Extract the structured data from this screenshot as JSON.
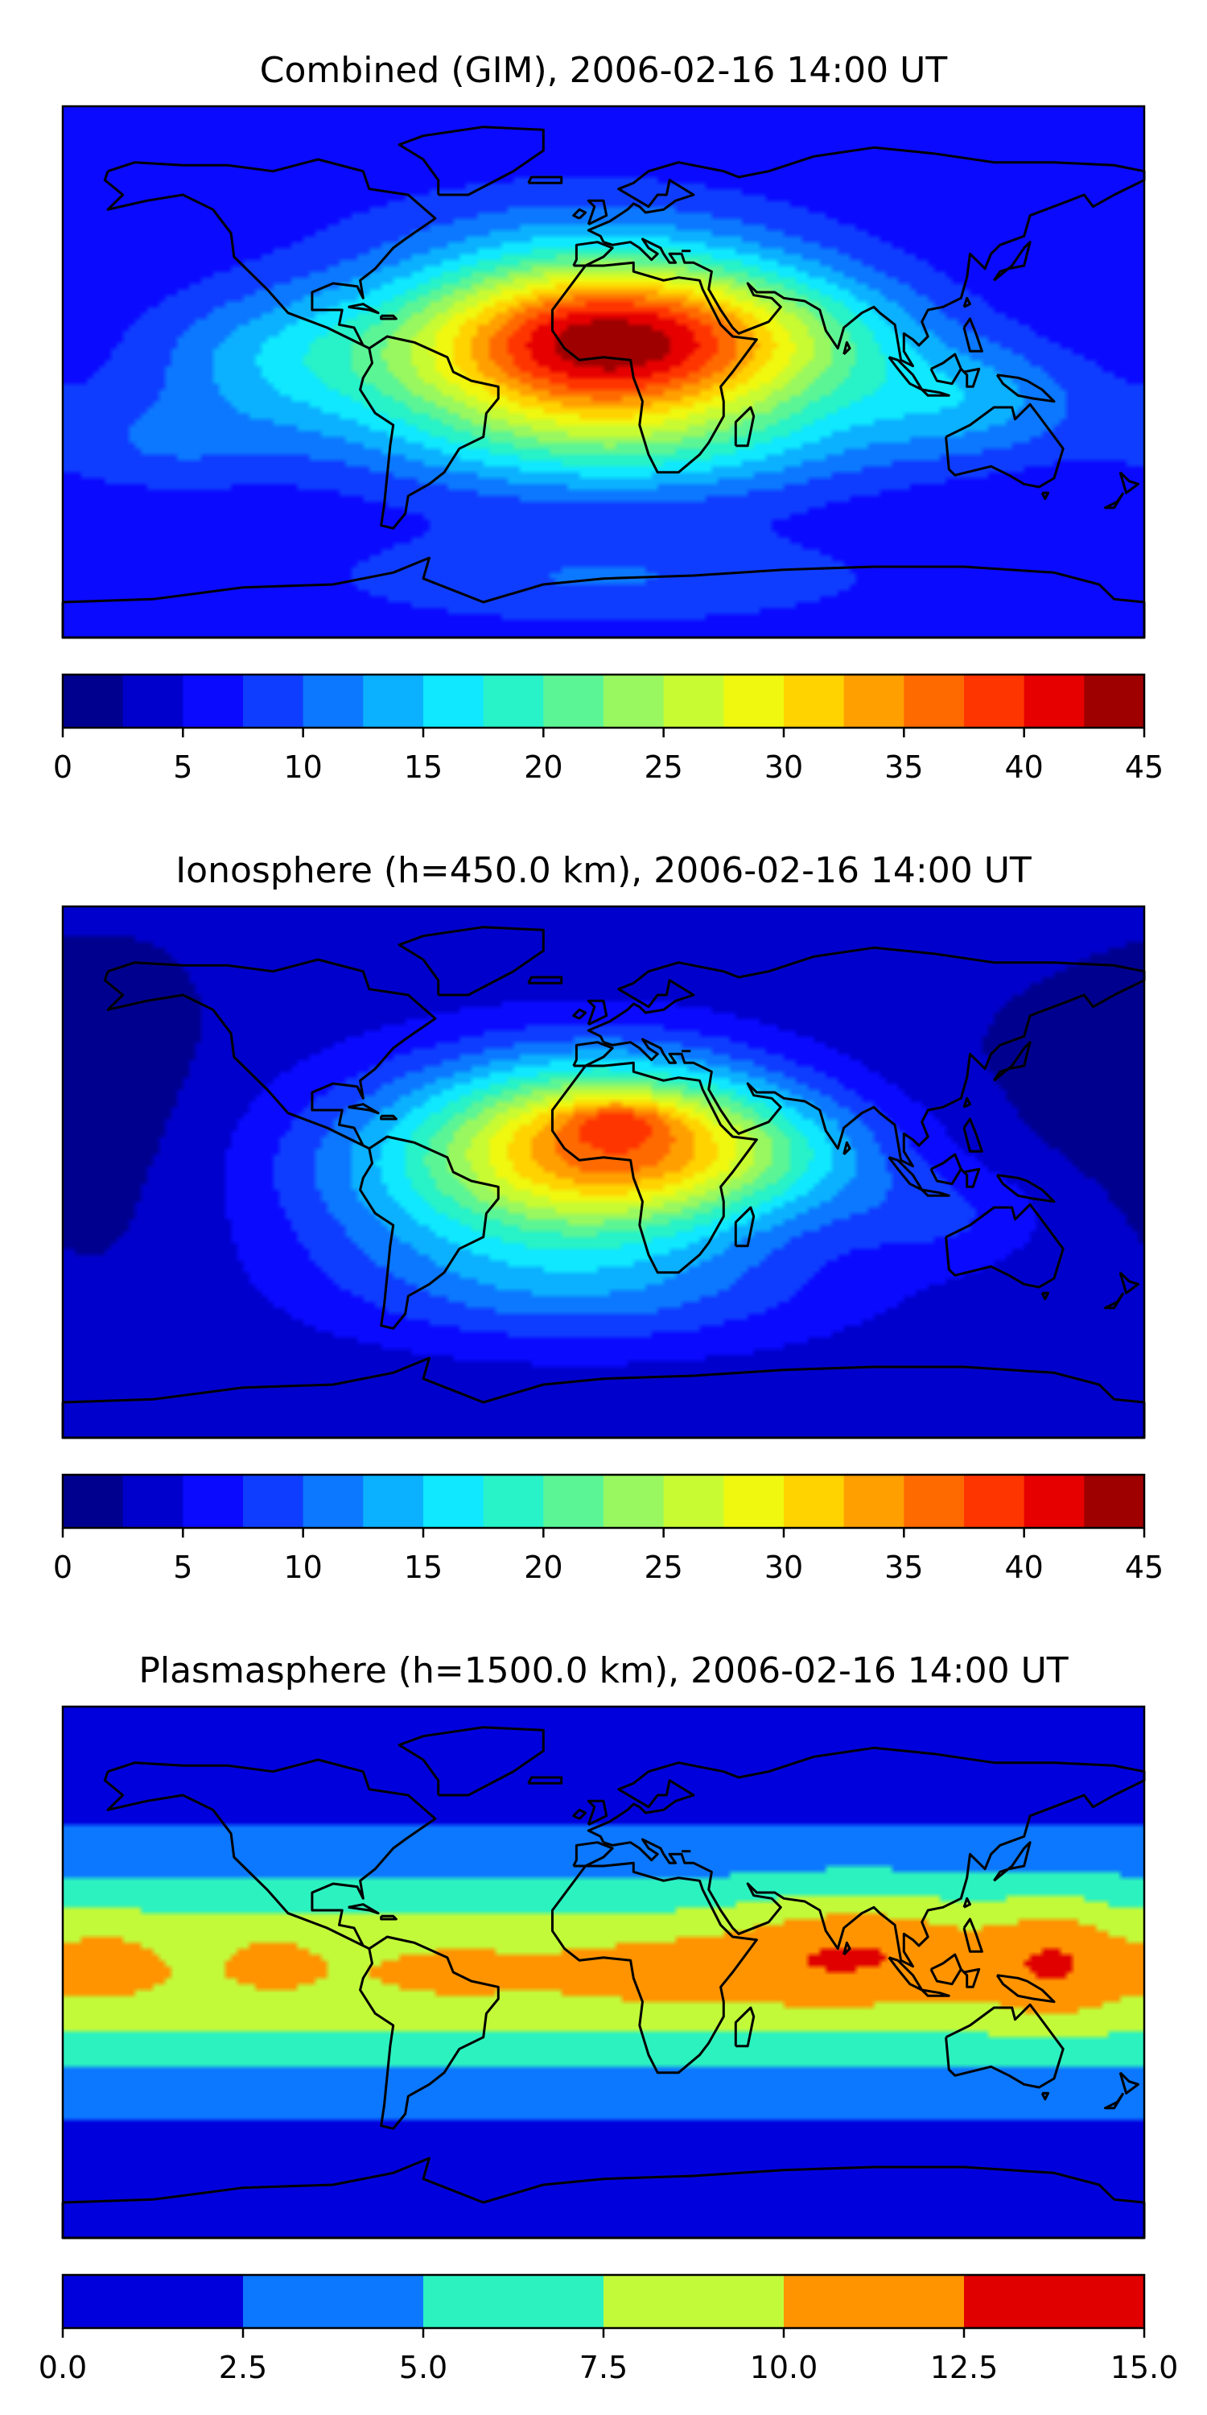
{
  "chart_data": [
    {
      "type": "heatmap",
      "title": "Combined (GIM), 2006-02-16 14:00 UT",
      "colorbar": {
        "ticks": [
          "0",
          "5",
          "10",
          "15",
          "20",
          "25",
          "30",
          "35",
          "40",
          "45"
        ],
        "levels": [
          0,
          2.5,
          5,
          7.5,
          10,
          12.5,
          15,
          17.5,
          20,
          22.5,
          25,
          27.5,
          30,
          32.5,
          35,
          37.5,
          40,
          42.5,
          45
        ],
        "colors": [
          "#00008f",
          "#0000cc",
          "#0a0aff",
          "#0f3dff",
          "#0c78ff",
          "#0bb1ff",
          "#0fe8ff",
          "#27f2c8",
          "#5cf596",
          "#99f85f",
          "#c9fb32",
          "#f0f810",
          "#ffd300",
          "#ff9f00",
          "#ff6a00",
          "#ff3500",
          "#e60000",
          "#9e0000"
        ]
      },
      "field": {
        "base": 5,
        "blobs": [
          {
            "lon": 0,
            "lat": 12,
            "slon": 42,
            "slat": 20,
            "amp": 27
          },
          {
            "lon": -30,
            "lat": 2,
            "slon": 60,
            "slat": 24,
            "amp": 12
          },
          {
            "lon": 60,
            "lat": 10,
            "slon": 38,
            "slat": 18,
            "amp": 10
          },
          {
            "lon": 125,
            "lat": -10,
            "slon": 28,
            "slat": 14,
            "amp": 7
          },
          {
            "lon": -110,
            "lat": 5,
            "slon": 32,
            "slat": 16,
            "amp": 5
          },
          {
            "lon": -150,
            "lat": -25,
            "slon": 30,
            "slat": 12,
            "amp": 4
          },
          {
            "lon": 20,
            "lat": -25,
            "slon": 55,
            "slat": 14,
            "amp": 7
          },
          {
            "lon": 0,
            "lat": -70,
            "slon": 70,
            "slat": 12,
            "amp": 5
          },
          {
            "lon": -10,
            "lat": 55,
            "slon": 70,
            "slat": 14,
            "amp": 2
          }
        ]
      }
    },
    {
      "type": "heatmap",
      "title": "Ionosphere  (h=450.0 km), 2006-02-16 14:00 UT",
      "colorbar": {
        "ticks": [
          "0",
          "5",
          "10",
          "15",
          "20",
          "25",
          "30",
          "35",
          "40",
          "45"
        ],
        "levels": [
          0,
          2.5,
          5,
          7.5,
          10,
          12.5,
          15,
          17.5,
          20,
          22.5,
          25,
          27.5,
          30,
          32.5,
          35,
          37.5,
          40,
          42.5,
          45
        ],
        "colors": [
          "#00008f",
          "#0000cc",
          "#0a0aff",
          "#0f3dff",
          "#0c78ff",
          "#0bb1ff",
          "#0fe8ff",
          "#27f2c8",
          "#5cf596",
          "#99f85f",
          "#c9fb32",
          "#f0f810",
          "#ffd300",
          "#ff9f00",
          "#ff6a00",
          "#ff3500",
          "#e60000",
          "#9e0000"
        ]
      },
      "field": {
        "base": 3.2,
        "blobs": [
          {
            "lon": 5,
            "lat": 10,
            "slon": 40,
            "slat": 20,
            "amp": 23
          },
          {
            "lon": 5,
            "lat": 18,
            "slon": 14,
            "slat": 5,
            "amp": 6
          },
          {
            "lon": -35,
            "lat": 0,
            "slon": 52,
            "slat": 25,
            "amp": 12
          },
          {
            "lon": 55,
            "lat": 5,
            "slon": 35,
            "slat": 15,
            "amp": 7
          },
          {
            "lon": 0,
            "lat": -40,
            "slon": 60,
            "slat": 15,
            "amp": 6
          },
          {
            "lon": 115,
            "lat": -15,
            "slon": 25,
            "slat": 12,
            "amp": 4
          },
          {
            "lon": -160,
            "lat": 15,
            "slon": 28,
            "slat": 45,
            "amp": -1.5
          },
          {
            "lon": 160,
            "lat": 30,
            "slon": 40,
            "slat": 30,
            "amp": -1.2
          }
        ]
      }
    },
    {
      "type": "heatmap",
      "title": "Plasmasphere (h=1500.0 km), 2006-02-16 14:00 UT",
      "colorbar": {
        "ticks": [
          "0.0",
          "2.5",
          "5.0",
          "7.5",
          "10.0",
          "12.5",
          "15.0"
        ],
        "levels": [
          0,
          2.5,
          5,
          7.5,
          10,
          12.5,
          15
        ],
        "colors": [
          "#0000dd",
          "#0c78ff",
          "#2cf2c0",
          "#c2fa3a",
          "#ff9400",
          "#e00000"
        ]
      },
      "field": {
        "base": 1.6,
        "band": {
          "lat": 0,
          "slat": 24,
          "amp": 8.1
        },
        "blobs": [
          {
            "lon": 85,
            "lat": 10,
            "slon": 28,
            "slat": 14,
            "amp": 3.2
          },
          {
            "lon": 150,
            "lat": 5,
            "slon": 15,
            "slat": 16,
            "amp": 3.0
          },
          {
            "lon": 25,
            "lat": 0,
            "slon": 30,
            "slat": 10,
            "amp": 1.5
          },
          {
            "lon": -165,
            "lat": 5,
            "slon": 12,
            "slat": 12,
            "amp": 1.4
          },
          {
            "lon": -110,
            "lat": 5,
            "slon": 10,
            "slat": 8,
            "amp": 1.3
          },
          {
            "lon": -50,
            "lat": 0,
            "slon": 20,
            "slat": 10,
            "amp": 0.8
          }
        ]
      }
    }
  ]
}
